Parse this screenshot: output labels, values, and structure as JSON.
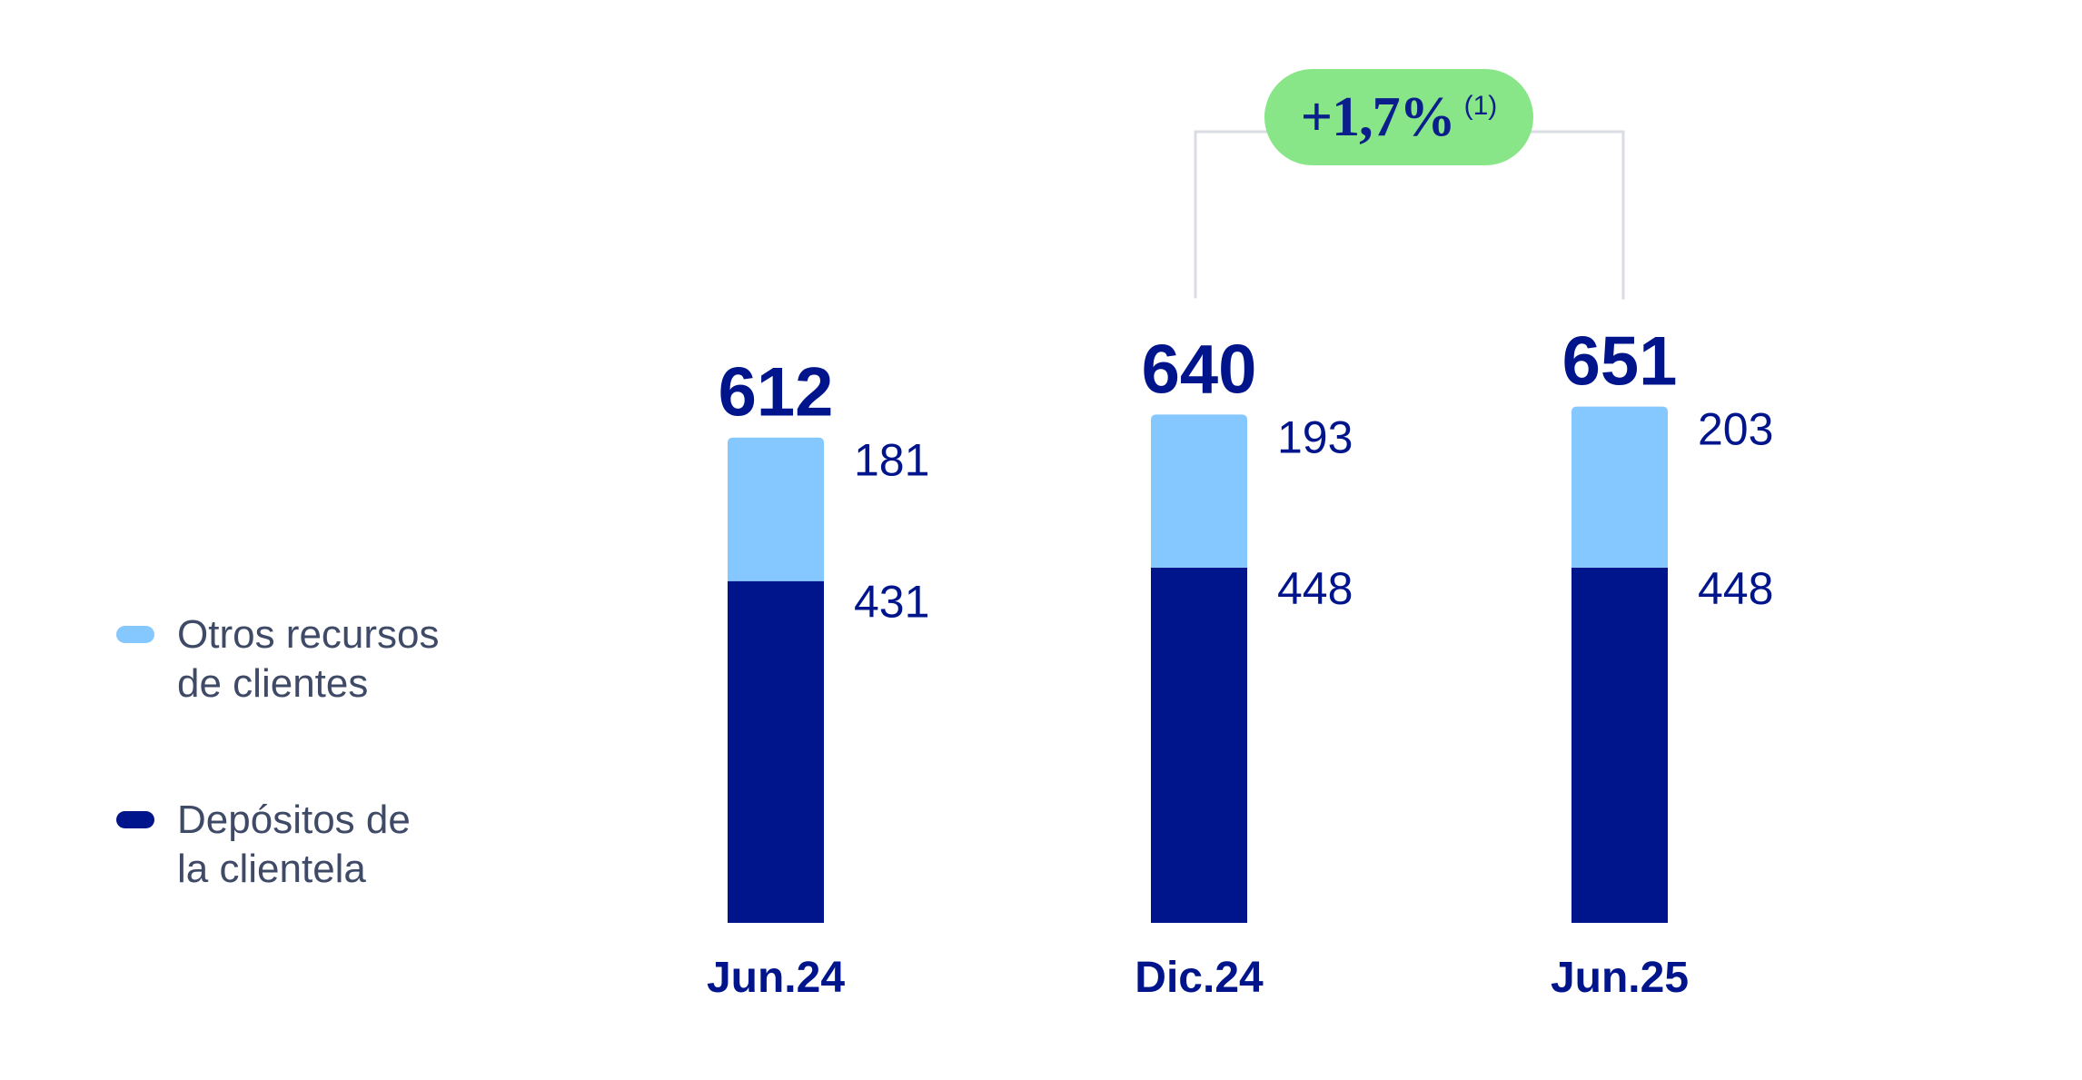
{
  "chart_data": {
    "type": "bar",
    "stacked": true,
    "categories": [
      "Jun.24",
      "Dic.24",
      "Jun.25"
    ],
    "totals": [
      "612",
      "640",
      "651"
    ],
    "series": [
      {
        "name": "Depósitos de la clientela",
        "values": [
          431,
          448,
          448
        ],
        "color": "#00148c"
      },
      {
        "name": "Otros recursos de clientes",
        "values": [
          181,
          193,
          203
        ],
        "color": "#85c8ff"
      }
    ],
    "annotation": {
      "value": "+1,7%",
      "note": "(1)",
      "from": "Dic.24",
      "to": "Jun.25",
      "color": "#88e688"
    },
    "legend_position": "left",
    "grid": false
  },
  "legend": {
    "otros_line1": "Otros recursos",
    "otros_line2": "de clientes",
    "depositos_line1": "Depósitos de",
    "depositos_line2": "la clientela"
  }
}
